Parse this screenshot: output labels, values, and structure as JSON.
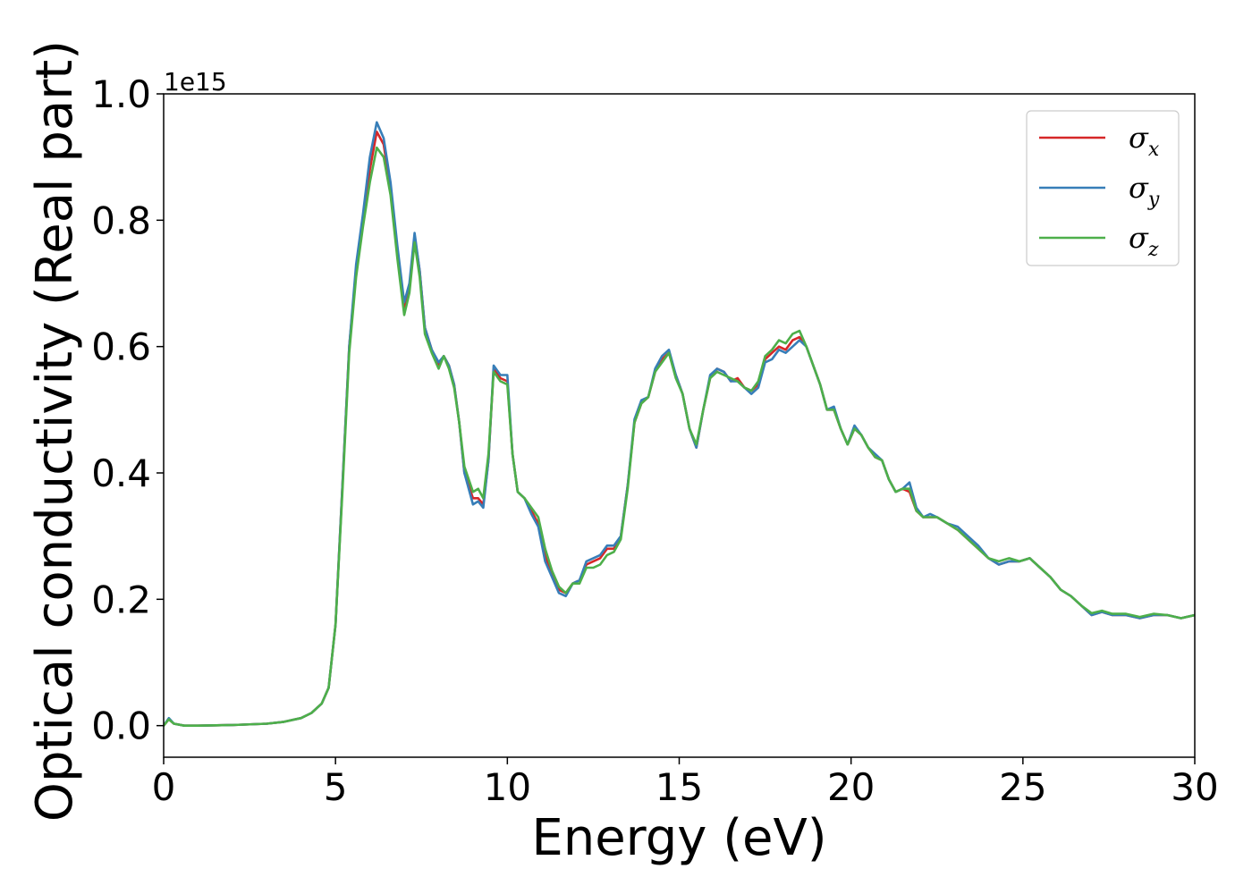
{
  "chart_data": {
    "type": "line",
    "title": "",
    "xlabel": "Energy (eV)",
    "ylabel": "Optical conductivity (Real part)",
    "y_offset_label": "1e15",
    "xlim": [
      0,
      30
    ],
    "ylim": [
      -0.05,
      1.0
    ],
    "xticks": [
      0,
      5,
      10,
      15,
      20,
      25,
      30
    ],
    "xtick_labels": [
      "0",
      "5",
      "10",
      "15",
      "20",
      "25",
      "30"
    ],
    "yticks": [
      0.0,
      0.2,
      0.4,
      0.6,
      0.8,
      1.0
    ],
    "ytick_labels": [
      "0.0",
      "0.2",
      "0.4",
      "0.6",
      "0.8",
      "1.0"
    ],
    "grid": false,
    "legend_position": "top-right",
    "series": [
      {
        "name": "σx",
        "legend_symbol": "σ",
        "legend_subscript": "x",
        "color": "#d62728",
        "x": [
          0,
          0.15,
          0.3,
          0.6,
          1,
          2,
          3,
          3.5,
          4,
          4.3,
          4.6,
          4.8,
          5.0,
          5.2,
          5.4,
          5.6,
          5.8,
          6.0,
          6.2,
          6.4,
          6.6,
          6.8,
          7.0,
          7.15,
          7.3,
          7.45,
          7.6,
          7.8,
          8.0,
          8.15,
          8.3,
          8.45,
          8.6,
          8.75,
          9.0,
          9.15,
          9.3,
          9.45,
          9.6,
          9.8,
          10.0,
          10.15,
          10.3,
          10.5,
          10.7,
          10.9,
          11.1,
          11.3,
          11.5,
          11.7,
          11.9,
          12.1,
          12.3,
          12.5,
          12.7,
          12.9,
          13.1,
          13.3,
          13.5,
          13.7,
          13.9,
          14.1,
          14.3,
          14.5,
          14.7,
          14.9,
          15.1,
          15.3,
          15.5,
          15.7,
          15.9,
          16.1,
          16.3,
          16.5,
          16.7,
          16.9,
          17.1,
          17.3,
          17.5,
          17.7,
          17.9,
          18.1,
          18.3,
          18.5,
          18.7,
          18.9,
          19.1,
          19.3,
          19.5,
          19.7,
          19.9,
          20.1,
          20.3,
          20.5,
          20.7,
          20.9,
          21.1,
          21.3,
          21.5,
          21.7,
          21.9,
          22.1,
          22.3,
          22.5,
          22.8,
          23.1,
          23.4,
          23.7,
          24.0,
          24.3,
          24.6,
          24.9,
          25.2,
          25.5,
          25.8,
          26.1,
          26.4,
          26.7,
          27.0,
          27.3,
          27.6,
          28.0,
          28.4,
          28.8,
          29.2,
          29.6,
          30
        ],
        "values": [
          0.0,
          0.01,
          0.003,
          0.0,
          0.0,
          0.001,
          0.003,
          0.006,
          0.012,
          0.02,
          0.035,
          0.06,
          0.16,
          0.38,
          0.6,
          0.72,
          0.8,
          0.88,
          0.94,
          0.92,
          0.85,
          0.75,
          0.66,
          0.69,
          0.775,
          0.72,
          0.63,
          0.595,
          0.57,
          0.585,
          0.57,
          0.54,
          0.48,
          0.4,
          0.36,
          0.36,
          0.35,
          0.42,
          0.565,
          0.55,
          0.545,
          0.43,
          0.37,
          0.36,
          0.34,
          0.32,
          0.27,
          0.24,
          0.215,
          0.21,
          0.225,
          0.23,
          0.255,
          0.26,
          0.265,
          0.28,
          0.28,
          0.3,
          0.38,
          0.48,
          0.51,
          0.52,
          0.56,
          0.58,
          0.59,
          0.555,
          0.525,
          0.47,
          0.44,
          0.5,
          0.55,
          0.565,
          0.56,
          0.545,
          0.55,
          0.535,
          0.53,
          0.54,
          0.58,
          0.59,
          0.6,
          0.595,
          0.61,
          0.615,
          0.6,
          0.57,
          0.54,
          0.5,
          0.5,
          0.47,
          0.445,
          0.47,
          0.46,
          0.44,
          0.425,
          0.42,
          0.39,
          0.37,
          0.375,
          0.37,
          0.34,
          0.33,
          0.33,
          0.33,
          0.32,
          0.31,
          0.295,
          0.28,
          0.265,
          0.255,
          0.26,
          0.26,
          0.265,
          0.25,
          0.235,
          0.215,
          0.205,
          0.19,
          0.175,
          0.18,
          0.175,
          0.175,
          0.17,
          0.175,
          0.175,
          0.17,
          0.175
        ]
      },
      {
        "name": "σy",
        "legend_symbol": "σ",
        "legend_subscript": "y",
        "color": "#377eb8",
        "x": [
          0,
          0.15,
          0.3,
          0.6,
          1,
          2,
          3,
          3.5,
          4,
          4.3,
          4.6,
          4.8,
          5.0,
          5.2,
          5.4,
          5.6,
          5.8,
          6.0,
          6.2,
          6.4,
          6.6,
          6.8,
          7.0,
          7.15,
          7.3,
          7.45,
          7.6,
          7.8,
          8.0,
          8.15,
          8.3,
          8.45,
          8.6,
          8.75,
          9.0,
          9.15,
          9.3,
          9.45,
          9.6,
          9.8,
          10.0,
          10.15,
          10.3,
          10.5,
          10.7,
          10.9,
          11.1,
          11.3,
          11.5,
          11.7,
          11.9,
          12.1,
          12.3,
          12.5,
          12.7,
          12.9,
          13.1,
          13.3,
          13.5,
          13.7,
          13.9,
          14.1,
          14.3,
          14.5,
          14.7,
          14.9,
          15.1,
          15.3,
          15.5,
          15.7,
          15.9,
          16.1,
          16.3,
          16.5,
          16.7,
          16.9,
          17.1,
          17.3,
          17.5,
          17.7,
          17.9,
          18.1,
          18.3,
          18.5,
          18.7,
          18.9,
          19.1,
          19.3,
          19.5,
          19.7,
          19.9,
          20.1,
          20.3,
          20.5,
          20.7,
          20.9,
          21.1,
          21.3,
          21.5,
          21.7,
          21.9,
          22.1,
          22.3,
          22.5,
          22.8,
          23.1,
          23.4,
          23.7,
          24.0,
          24.3,
          24.6,
          24.9,
          25.2,
          25.5,
          25.8,
          26.1,
          26.4,
          26.7,
          27.0,
          27.3,
          27.6,
          28.0,
          28.4,
          28.8,
          29.2,
          29.6,
          30
        ],
        "values": [
          0.0,
          0.012,
          0.003,
          0.0,
          0.0,
          0.001,
          0.003,
          0.006,
          0.012,
          0.02,
          0.035,
          0.06,
          0.16,
          0.38,
          0.6,
          0.73,
          0.81,
          0.9,
          0.955,
          0.93,
          0.86,
          0.76,
          0.67,
          0.7,
          0.78,
          0.72,
          0.63,
          0.595,
          0.575,
          0.585,
          0.57,
          0.54,
          0.48,
          0.4,
          0.35,
          0.355,
          0.345,
          0.42,
          0.57,
          0.555,
          0.555,
          0.43,
          0.37,
          0.36,
          0.335,
          0.315,
          0.26,
          0.235,
          0.21,
          0.205,
          0.225,
          0.23,
          0.26,
          0.265,
          0.27,
          0.285,
          0.285,
          0.3,
          0.38,
          0.485,
          0.515,
          0.52,
          0.565,
          0.585,
          0.595,
          0.555,
          0.525,
          0.47,
          0.44,
          0.5,
          0.555,
          0.565,
          0.56,
          0.545,
          0.545,
          0.535,
          0.525,
          0.535,
          0.575,
          0.58,
          0.595,
          0.59,
          0.6,
          0.61,
          0.6,
          0.57,
          0.54,
          0.5,
          0.505,
          0.47,
          0.445,
          0.475,
          0.46,
          0.44,
          0.43,
          0.42,
          0.39,
          0.37,
          0.375,
          0.385,
          0.345,
          0.33,
          0.335,
          0.33,
          0.32,
          0.315,
          0.3,
          0.285,
          0.265,
          0.255,
          0.26,
          0.26,
          0.265,
          0.25,
          0.235,
          0.215,
          0.205,
          0.19,
          0.175,
          0.18,
          0.175,
          0.175,
          0.17,
          0.175,
          0.175,
          0.17,
          0.175
        ]
      },
      {
        "name": "σz",
        "legend_symbol": "σ",
        "legend_subscript": "z",
        "color": "#4daf4a",
        "x": [
          0,
          0.15,
          0.3,
          0.6,
          1,
          2,
          3,
          3.5,
          4,
          4.3,
          4.6,
          4.8,
          5.0,
          5.2,
          5.4,
          5.6,
          5.8,
          6.0,
          6.2,
          6.4,
          6.6,
          6.8,
          7.0,
          7.15,
          7.3,
          7.45,
          7.6,
          7.8,
          8.0,
          8.15,
          8.3,
          8.45,
          8.6,
          8.75,
          9.0,
          9.15,
          9.3,
          9.45,
          9.6,
          9.8,
          10.0,
          10.15,
          10.3,
          10.5,
          10.7,
          10.9,
          11.1,
          11.3,
          11.5,
          11.7,
          11.9,
          12.1,
          12.3,
          12.5,
          12.7,
          12.9,
          13.1,
          13.3,
          13.5,
          13.7,
          13.9,
          14.1,
          14.3,
          14.5,
          14.7,
          14.9,
          15.1,
          15.3,
          15.5,
          15.7,
          15.9,
          16.1,
          16.3,
          16.5,
          16.7,
          16.9,
          17.1,
          17.3,
          17.5,
          17.7,
          17.9,
          18.1,
          18.3,
          18.5,
          18.7,
          18.9,
          19.1,
          19.3,
          19.5,
          19.7,
          19.9,
          20.1,
          20.3,
          20.5,
          20.7,
          20.9,
          21.1,
          21.3,
          21.5,
          21.7,
          21.9,
          22.1,
          22.3,
          22.5,
          22.8,
          23.1,
          23.4,
          23.7,
          24.0,
          24.3,
          24.6,
          24.9,
          25.2,
          25.5,
          25.8,
          26.1,
          26.4,
          26.7,
          27.0,
          27.3,
          27.6,
          28.0,
          28.4,
          28.8,
          29.2,
          29.6,
          30
        ],
        "values": [
          0.0,
          0.01,
          0.003,
          0.0,
          0.0,
          0.001,
          0.003,
          0.006,
          0.012,
          0.02,
          0.035,
          0.06,
          0.16,
          0.37,
          0.59,
          0.71,
          0.79,
          0.86,
          0.915,
          0.9,
          0.84,
          0.74,
          0.65,
          0.685,
          0.765,
          0.71,
          0.62,
          0.59,
          0.565,
          0.585,
          0.565,
          0.535,
          0.48,
          0.41,
          0.37,
          0.375,
          0.36,
          0.43,
          0.56,
          0.545,
          0.54,
          0.43,
          0.37,
          0.36,
          0.345,
          0.33,
          0.28,
          0.245,
          0.22,
          0.21,
          0.225,
          0.225,
          0.25,
          0.25,
          0.255,
          0.27,
          0.275,
          0.295,
          0.375,
          0.48,
          0.51,
          0.52,
          0.56,
          0.575,
          0.59,
          0.55,
          0.525,
          0.47,
          0.445,
          0.5,
          0.55,
          0.56,
          0.555,
          0.55,
          0.545,
          0.535,
          0.53,
          0.545,
          0.585,
          0.595,
          0.61,
          0.605,
          0.62,
          0.625,
          0.6,
          0.57,
          0.54,
          0.5,
          0.5,
          0.47,
          0.445,
          0.47,
          0.46,
          0.44,
          0.425,
          0.42,
          0.39,
          0.37,
          0.375,
          0.375,
          0.34,
          0.33,
          0.33,
          0.33,
          0.32,
          0.31,
          0.295,
          0.28,
          0.265,
          0.26,
          0.265,
          0.26,
          0.265,
          0.25,
          0.235,
          0.215,
          0.205,
          0.19,
          0.178,
          0.182,
          0.177,
          0.177,
          0.172,
          0.177,
          0.175,
          0.17,
          0.175
        ]
      }
    ]
  }
}
